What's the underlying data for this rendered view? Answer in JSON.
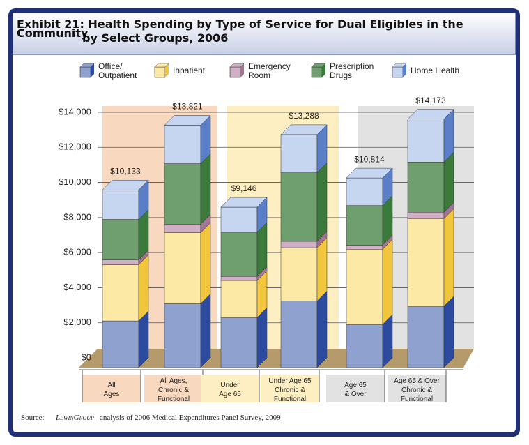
{
  "chart_data": {
    "type": "stacked-bar-3d",
    "title_lines": [
      "Exhibit 21: Health Spending by Type of Service for Dual Eligibles in the Community",
      "by Select Groups, 2006"
    ],
    "categories": [
      "All\nAges",
      "All Ages,\nChronic &\nFunctional",
      "Under\nAge 65",
      "Under Age 65\nChronic &\nFunctional",
      "Age 65\n& Over",
      "Age 65 & Over\nChronic &\nFunctional"
    ],
    "group_colors": [
      "#f8d9c0",
      "#fdefc2",
      "#e2e2e2"
    ],
    "series": [
      {
        "name": "Office/\nOutpatient",
        "color": "#8fa2cf",
        "side": "#2c4a9e",
        "values": [
          2660,
          3650,
          2860,
          3800,
          2460,
          3500
        ]
      },
      {
        "name": "Inpatient",
        "color": "#fde9a6",
        "side": "#f1c63c",
        "values": [
          3210,
          4050,
          2110,
          3040,
          4290,
          5000
        ]
      },
      {
        "name": "Emergency\nRoom",
        "color": "#cfb0c4",
        "side": "#a47496",
        "values": [
          270,
          480,
          230,
          360,
          230,
          360
        ]
      },
      {
        "name": "Prescription\nDrugs",
        "color": "#6f9f6f",
        "side": "#3c7a3c",
        "values": [
          2310,
          3450,
          2520,
          3910,
          2260,
          2860
        ]
      },
      {
        "name": "Home Health",
        "color": "#c6d6f0",
        "side": "#5a7fc8",
        "values": [
          1683,
          2191,
          1426,
          2178,
          1574,
          2453
        ]
      }
    ],
    "totals": [
      10133,
      13821,
      9146,
      13288,
      10814,
      14173
    ],
    "total_labels": [
      "$10,133",
      "$13,821",
      "$9,146",
      "$13,288",
      "$10,814",
      "$14,173"
    ],
    "ylim": [
      0,
      14000
    ],
    "yticks": [
      {
        "value": 0,
        "label": "$0"
      },
      {
        "value": 2000,
        "label": "$2,000"
      },
      {
        "value": 4000,
        "label": "$4,000"
      },
      {
        "value": 6000,
        "label": "$6,000"
      },
      {
        "value": 8000,
        "label": "$8,000"
      },
      {
        "value": 10000,
        "label": "$10,000"
      },
      {
        "value": 12000,
        "label": "$12,000"
      },
      {
        "value": 14000,
        "label": "$14,000"
      }
    ],
    "grid": true,
    "source": {
      "label": "Source:",
      "logo": "LewinGroup",
      "text": "analysis of 2006 Medical Expenditures Panel Survey, 2009"
    }
  }
}
